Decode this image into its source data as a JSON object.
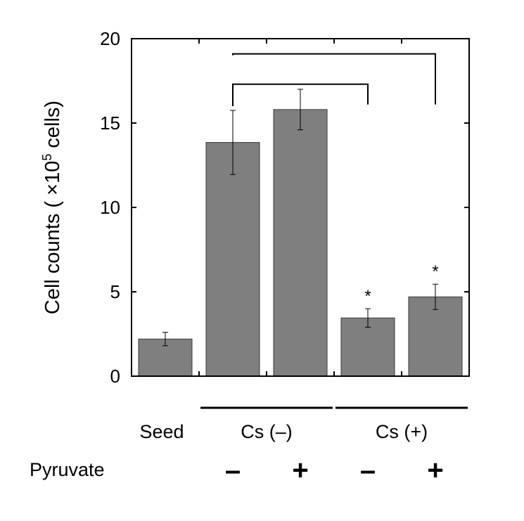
{
  "chart_data": {
    "type": "bar",
    "title": "",
    "ylabel_prefix": "Cell counts ( ×10",
    "ylabel_sup": "5",
    "ylabel_suffix": " cells)",
    "ylim": [
      0,
      20
    ],
    "yticks": [
      "0",
      "5",
      "10",
      "15",
      "20"
    ],
    "categories": [
      "Seed",
      "Cs (–) Pyruvate –",
      "Cs (–) Pyruvate +",
      "Cs (+) Pyruvate –",
      "Cs (+) Pyruvate +"
    ],
    "values": [
      2.2,
      13.85,
      15.8,
      3.45,
      4.7
    ],
    "errors": [
      0.4,
      1.9,
      1.2,
      0.55,
      0.75
    ],
    "bar_color": "#7f7f7f",
    "significance_marks": [
      "",
      "",
      "",
      "*",
      "*"
    ],
    "comparison_brackets": [
      {
        "from": 1,
        "to": 3
      },
      {
        "from": 1,
        "to": 4
      }
    ],
    "x_labels": {
      "seed": "Seed",
      "group_minus": "Cs (–)",
      "group_plus": "Cs (+)",
      "row_label": "Pyruvate",
      "pyruvate_signs": [
        "–",
        "+",
        "–",
        "+"
      ]
    },
    "grid": false
  }
}
